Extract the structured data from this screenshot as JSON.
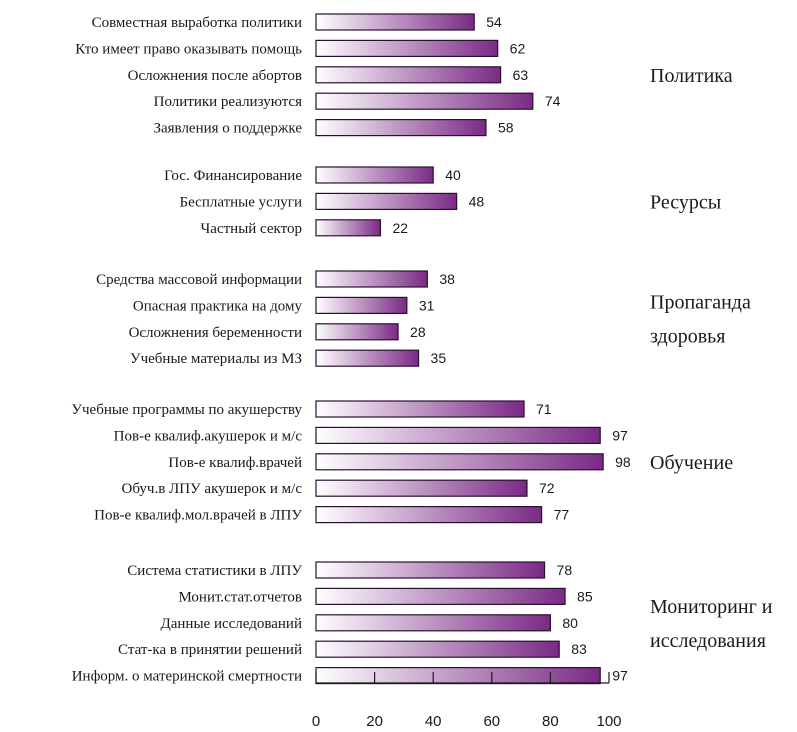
{
  "chart_data": {
    "type": "bar",
    "orientation": "horizontal",
    "xlim": [
      0,
      100
    ],
    "xticks": [
      0,
      20,
      40,
      60,
      80,
      100
    ],
    "grid": false,
    "bar_gradient": [
      "#ffffff",
      "#7a2a85"
    ],
    "groups": [
      {
        "label_lines": [
          "Политика"
        ],
        "categories": [
          "Совместная выработка политики",
          "Кто имеет право оказывать помощь",
          "Осложнения после абортов",
          "Политики реализуются",
          "Заявления о поддержке"
        ],
        "values": [
          54,
          62,
          63,
          74,
          58
        ]
      },
      {
        "label_lines": [
          "Ресурсы"
        ],
        "categories": [
          "Гос. Финансирование",
          "Бесплатные услуги",
          "Частный сектор"
        ],
        "values": [
          40,
          48,
          22
        ]
      },
      {
        "label_lines": [
          "Пропаганда",
          "здоровья"
        ],
        "categories": [
          "Средства массовой информации",
          "Опасная практика на дому",
          "Осложнения беременности",
          "Учебные материалы из МЗ"
        ],
        "values": [
          38,
          31,
          28,
          35
        ]
      },
      {
        "label_lines": [
          "Обучение"
        ],
        "categories": [
          "Учебные программы по акушерству",
          "Пов-е квалиф.акушерок и м/с",
          "Пов-е квалиф.врачей",
          "Обуч.в ЛПУ акушерок и м/с",
          "Пов-е квалиф.мол.врачей в ЛПУ"
        ],
        "values": [
          71,
          97,
          98,
          72,
          77
        ]
      },
      {
        "label_lines": [
          "Мониторинг и",
          "исследования"
        ],
        "categories": [
          "Система статистики в ЛПУ",
          "Монит.стат.отчетов",
          "Данные исследований",
          "Стат-ка в принятии решений",
          "Информ. о материнской смертности"
        ],
        "values": [
          78,
          85,
          80,
          83,
          97
        ]
      }
    ]
  }
}
